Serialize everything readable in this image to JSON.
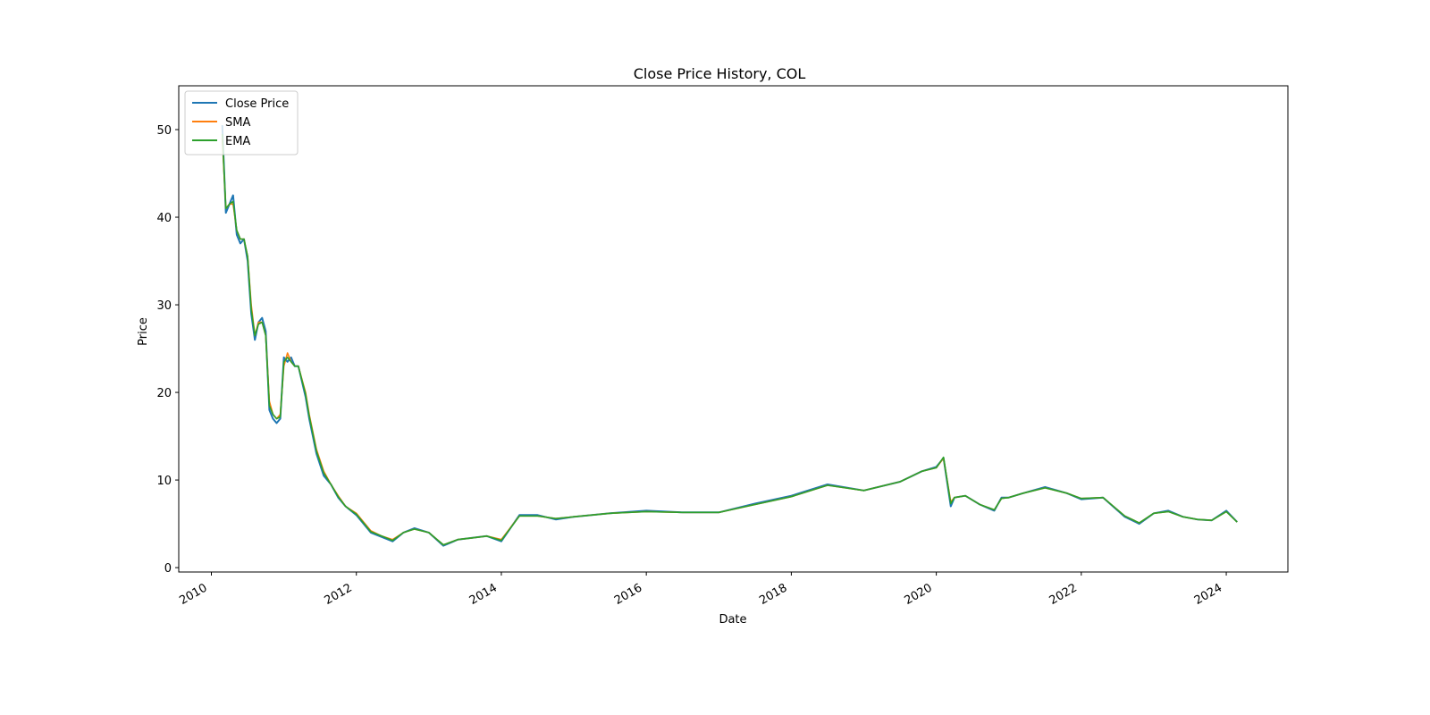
{
  "chart_data": {
    "type": "line",
    "title": "Close Price History, COL",
    "xlabel": "Date",
    "ylabel": "Price",
    "xlim": [
      2009.55,
      2024.85
    ],
    "ylim": [
      -0.5,
      55
    ],
    "xticks": [
      2010,
      2012,
      2014,
      2016,
      2018,
      2020,
      2022,
      2024
    ],
    "xtick_labels": [
      "2010",
      "2012",
      "2014",
      "2016",
      "2018",
      "2020",
      "2022",
      "2024"
    ],
    "yticks": [
      0,
      10,
      20,
      30,
      40,
      50
    ],
    "ytick_labels": [
      "0",
      "10",
      "20",
      "30",
      "40",
      "50"
    ],
    "grid": false,
    "legend_position": "upper-left",
    "x": [
      2010.15,
      2010.2,
      2010.25,
      2010.3,
      2010.35,
      2010.4,
      2010.45,
      2010.5,
      2010.55,
      2010.6,
      2010.65,
      2010.7,
      2010.75,
      2010.8,
      2010.85,
      2010.9,
      2010.95,
      2011.0,
      2011.05,
      2011.1,
      2011.15,
      2011.2,
      2011.3,
      2011.35,
      2011.45,
      2011.55,
      2011.65,
      2011.75,
      2011.85,
      2012.0,
      2012.2,
      2012.35,
      2012.5,
      2012.65,
      2012.8,
      2013.0,
      2013.2,
      2013.4,
      2013.6,
      2013.8,
      2014.0,
      2014.25,
      2014.5,
      2014.75,
      2015.0,
      2015.5,
      2016.0,
      2016.5,
      2017.0,
      2017.5,
      2018.0,
      2018.5,
      2019.0,
      2019.5,
      2019.8,
      2020.0,
      2020.1,
      2020.2,
      2020.25,
      2020.4,
      2020.6,
      2020.8,
      2020.9,
      2021.0,
      2021.2,
      2021.5,
      2021.8,
      2022.0,
      2022.3,
      2022.6,
      2022.8,
      2023.0,
      2023.2,
      2023.4,
      2023.6,
      2023.8,
      2024.0,
      2024.15
    ],
    "series": [
      {
        "name": "Close Price",
        "color": "#1f77b4",
        "values": [
          50.5,
          40.5,
          41.5,
          42.5,
          38.0,
          37.0,
          37.5,
          35.0,
          29.0,
          26.0,
          28.0,
          28.5,
          27.0,
          18.0,
          17.0,
          16.5,
          17.0,
          24.0,
          23.5,
          24.0,
          23.0,
          23.0,
          19.5,
          17.0,
          13.0,
          10.5,
          9.5,
          8.0,
          7.0,
          6.0,
          4.0,
          3.5,
          3.0,
          4.0,
          4.5,
          4.0,
          2.5,
          3.2,
          3.4,
          3.6,
          3.0,
          6.0,
          6.0,
          5.5,
          5.8,
          6.2,
          6.5,
          6.3,
          6.3,
          7.3,
          8.2,
          9.5,
          8.8,
          9.8,
          11.0,
          11.5,
          12.5,
          7.0,
          8.0,
          8.2,
          7.2,
          6.5,
          8.0,
          8.0,
          8.5,
          9.2,
          8.5,
          7.8,
          8.0,
          5.8,
          5.0,
          6.2,
          6.5,
          5.8,
          5.5,
          5.4,
          6.5,
          5.2
        ]
      },
      {
        "name": "SMA",
        "color": "#ff7f0e",
        "values": [
          49.0,
          41.0,
          41.5,
          41.5,
          38.5,
          37.5,
          37.5,
          35.5,
          30.0,
          26.5,
          28.0,
          28.0,
          26.5,
          19.0,
          17.5,
          17.0,
          17.5,
          23.0,
          24.5,
          23.5,
          23.0,
          23.0,
          20.0,
          17.5,
          13.5,
          11.0,
          9.5,
          8.2,
          7.0,
          6.2,
          4.2,
          3.6,
          3.2,
          4.0,
          4.4,
          4.0,
          2.6,
          3.2,
          3.4,
          3.6,
          3.2,
          5.9,
          5.9,
          5.6,
          5.8,
          6.2,
          6.4,
          6.3,
          6.3,
          7.2,
          8.1,
          9.4,
          8.8,
          9.8,
          11.0,
          11.4,
          12.5,
          7.5,
          8.0,
          8.2,
          7.2,
          6.6,
          7.9,
          8.0,
          8.5,
          9.1,
          8.5,
          7.9,
          8.0,
          5.9,
          5.1,
          6.2,
          6.4,
          5.8,
          5.5,
          5.4,
          6.4,
          5.2
        ]
      },
      {
        "name": "EMA",
        "color": "#2ca02c",
        "values": [
          49.5,
          41.0,
          41.5,
          41.8,
          38.5,
          37.5,
          37.5,
          35.5,
          29.5,
          26.5,
          27.8,
          28.0,
          26.5,
          18.5,
          17.5,
          17.0,
          17.2,
          23.5,
          24.0,
          23.5,
          23.0,
          23.0,
          19.8,
          17.3,
          13.3,
          10.8,
          9.5,
          8.1,
          7.0,
          6.1,
          4.1,
          3.6,
          3.1,
          4.0,
          4.4,
          4.0,
          2.6,
          3.2,
          3.4,
          3.6,
          3.1,
          5.9,
          5.9,
          5.6,
          5.8,
          6.2,
          6.4,
          6.3,
          6.3,
          7.2,
          8.1,
          9.4,
          8.8,
          9.8,
          11.0,
          11.4,
          12.6,
          7.3,
          8.0,
          8.2,
          7.2,
          6.6,
          7.9,
          8.0,
          8.5,
          9.1,
          8.5,
          7.9,
          8.0,
          5.9,
          5.1,
          6.2,
          6.4,
          5.8,
          5.5,
          5.4,
          6.4,
          5.2
        ]
      }
    ]
  }
}
